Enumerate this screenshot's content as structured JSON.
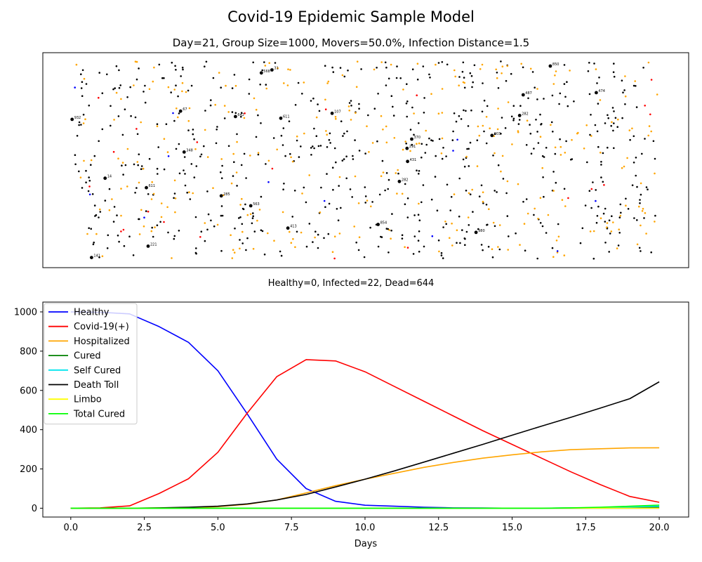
{
  "suptitle": "Covid-19 Epidemic Sample Model",
  "scatter": {
    "title": "Day=21, Group Size=1000, Movers=50.0%, Infection Distance=1.5",
    "caption": "Healthy=0, Infected=22, Dead=644",
    "colors": {
      "dead": "#000000",
      "hospitalized": "#ffa500",
      "infected": "#ff0000",
      "healthy": "#0000ff"
    },
    "labeled_points": [
      {
        "label": "850",
        "fx": 0.813,
        "fy": 0.062
      },
      {
        "label": "31",
        "fx": 0.341,
        "fy": 0.08
      },
      {
        "label": "568",
        "fx": 0.323,
        "fy": 0.094
      },
      {
        "label": "487",
        "fx": 0.767,
        "fy": 0.196
      },
      {
        "label": "474",
        "fx": 0.891,
        "fy": 0.186
      },
      {
        "label": "67",
        "fx": 0.186,
        "fy": 0.272
      },
      {
        "label": "932",
        "fx": 0.002,
        "fy": 0.31
      },
      {
        "label": "642",
        "fx": 0.279,
        "fy": 0.297
      },
      {
        "label": "611",
        "fx": 0.356,
        "fy": 0.305
      },
      {
        "label": "107",
        "fx": 0.443,
        "fy": 0.282
      },
      {
        "label": "282",
        "fx": 0.761,
        "fy": 0.292
      },
      {
        "label": "370",
        "fx": 0.578,
        "fy": 0.402
      },
      {
        "label": "803",
        "fx": 0.714,
        "fy": 0.385
      },
      {
        "label": "291",
        "fx": 0.57,
        "fy": 0.445
      },
      {
        "label": "348",
        "fx": 0.192,
        "fy": 0.462
      },
      {
        "label": "431",
        "fx": 0.571,
        "fy": 0.506
      },
      {
        "label": "14",
        "fx": 0.058,
        "fy": 0.584
      },
      {
        "label": "282",
        "fx": 0.557,
        "fy": 0.599
      },
      {
        "label": "611",
        "fx": 0.128,
        "fy": 0.628
      },
      {
        "label": "285",
        "fx": 0.255,
        "fy": 0.666
      },
      {
        "label": "563",
        "fx": 0.305,
        "fy": 0.712
      },
      {
        "label": "854",
        "fx": 0.521,
        "fy": 0.799
      },
      {
        "label": "413",
        "fx": 0.368,
        "fy": 0.816
      },
      {
        "label": "980",
        "fx": 0.687,
        "fy": 0.836
      },
      {
        "label": "221",
        "fx": 0.131,
        "fy": 0.9
      },
      {
        "label": "141",
        "fx": 0.035,
        "fy": 0.953
      }
    ]
  },
  "chart_data": {
    "type": "line",
    "title": "",
    "xlabel": "Days",
    "ylabel": "",
    "xlim": [
      -0.95,
      21.0
    ],
    "ylim": [
      -45,
      1050
    ],
    "xticks": [
      "0.0",
      "2.5",
      "5.0",
      "7.5",
      "10.0",
      "12.5",
      "15.0",
      "17.5",
      "20.0"
    ],
    "yticks": [
      "0",
      "200",
      "400",
      "600",
      "800",
      "1000"
    ],
    "legend_position": "top-left",
    "x": [
      0,
      1,
      2,
      3,
      4,
      5,
      6,
      7,
      8,
      9,
      10,
      11,
      12,
      13,
      14,
      15,
      16,
      17,
      18,
      19,
      20
    ],
    "series": [
      {
        "name": "Healthy",
        "color": "#0000ff",
        "values": [
          1000,
          998,
          990,
          925,
          845,
          700,
          480,
          250,
          100,
          35,
          15,
          10,
          5,
          2,
          1,
          0,
          0,
          0,
          0,
          0,
          0
        ]
      },
      {
        "name": "Covid-19(+)",
        "color": "#ff0000",
        "values": [
          0,
          2,
          12,
          75,
          150,
          285,
          485,
          670,
          757,
          750,
          695,
          620,
          545,
          470,
          395,
          325,
          255,
          185,
          120,
          60,
          30
        ]
      },
      {
        "name": "Hospitalized",
        "color": "#ffa500",
        "values": [
          0,
          0,
          0,
          1,
          3,
          8,
          20,
          42,
          78,
          115,
          148,
          178,
          208,
          233,
          255,
          272,
          287,
          298,
          303,
          307,
          308
        ]
      },
      {
        "name": "Cured",
        "color": "#008000",
        "values": [
          0,
          0,
          0,
          0,
          0,
          0,
          0,
          0,
          0,
          0,
          0,
          0,
          0,
          0,
          0,
          0,
          0,
          1,
          2,
          3,
          5
        ]
      },
      {
        "name": "Self Cured",
        "color": "#00e5ee",
        "values": [
          0,
          0,
          0,
          0,
          0,
          0,
          0,
          0,
          0,
          0,
          0,
          0,
          0,
          0,
          0,
          0,
          0,
          1,
          3,
          6,
          10
        ]
      },
      {
        "name": "Death Toll",
        "color": "#000000",
        "values": [
          0,
          0,
          0,
          2,
          5,
          10,
          22,
          42,
          70,
          108,
          148,
          190,
          235,
          280,
          325,
          372,
          418,
          463,
          510,
          558,
          644
        ]
      },
      {
        "name": "Limbo",
        "color": "#ffff00",
        "values": [
          0,
          0,
          0,
          0,
          0,
          0,
          0,
          0,
          0,
          0,
          0,
          0,
          0,
          0,
          0,
          0,
          0,
          0,
          0,
          0,
          0
        ]
      },
      {
        "name": "Total Cured",
        "color": "#00ff00",
        "values": [
          0,
          0,
          0,
          0,
          0,
          0,
          0,
          0,
          0,
          0,
          0,
          0,
          0,
          0,
          0,
          0,
          0,
          2,
          5,
          10,
          16
        ]
      }
    ]
  }
}
